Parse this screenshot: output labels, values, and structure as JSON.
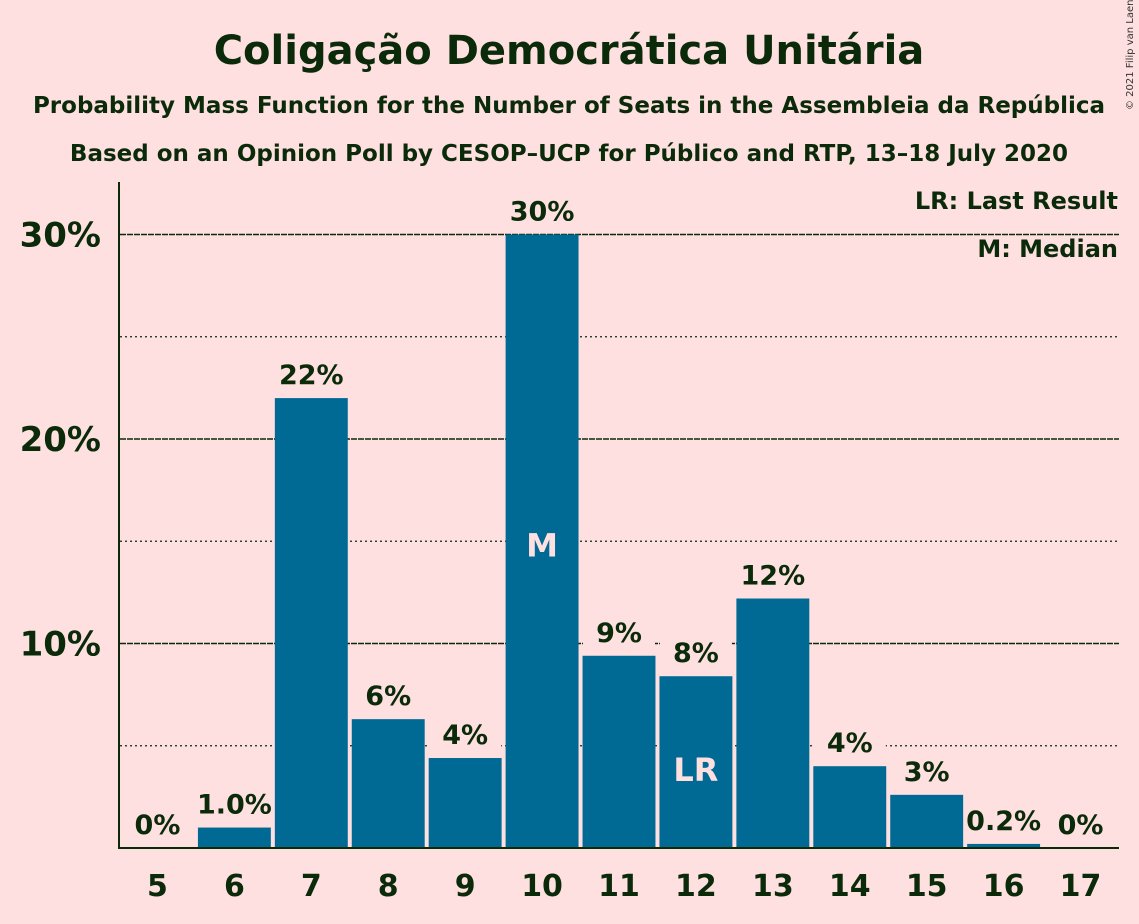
{
  "chart_data": {
    "type": "bar",
    "title": "Coligação Democrática Unitária",
    "subtitle": "Probability Mass Function for the Number of Seats in the Assembleia da República",
    "subtitle2": "Based on an Opinion Poll by CESOP–UCP for Público and RTP, 13–18 July 2020",
    "copyright": "© 2021 Filip van Laenen",
    "legend": {
      "lr": "LR: Last Result",
      "m": "M: Median",
      "placement": "top-right"
    },
    "categories": [
      "5",
      "6",
      "7",
      "8",
      "9",
      "10",
      "11",
      "12",
      "13",
      "14",
      "15",
      "16",
      "17"
    ],
    "values": [
      0,
      1.0,
      22,
      6.3,
      4.4,
      30,
      9.4,
      8.4,
      12.2,
      4.0,
      2.6,
      0.2,
      0
    ],
    "value_labels": [
      "0%",
      "1.0%",
      "22%",
      "6%",
      "4%",
      "30%",
      "9%",
      "8%",
      "12%",
      "4%",
      "3%",
      "0.2%",
      "0%"
    ],
    "yticks": [
      {
        "value": 10,
        "label": "10%"
      },
      {
        "value": 20,
        "label": "20%"
      },
      {
        "value": 30,
        "label": "30%"
      }
    ],
    "minor_gridlines": [
      5,
      15,
      25
    ],
    "ylim": [
      0,
      32
    ],
    "median_category": "10",
    "median_marker": "M",
    "last_result_category": "12",
    "last_result_marker": "LR",
    "bar_color": "#006994",
    "background_color": "#ffe0e0",
    "text_color": "#0a2a0a"
  }
}
